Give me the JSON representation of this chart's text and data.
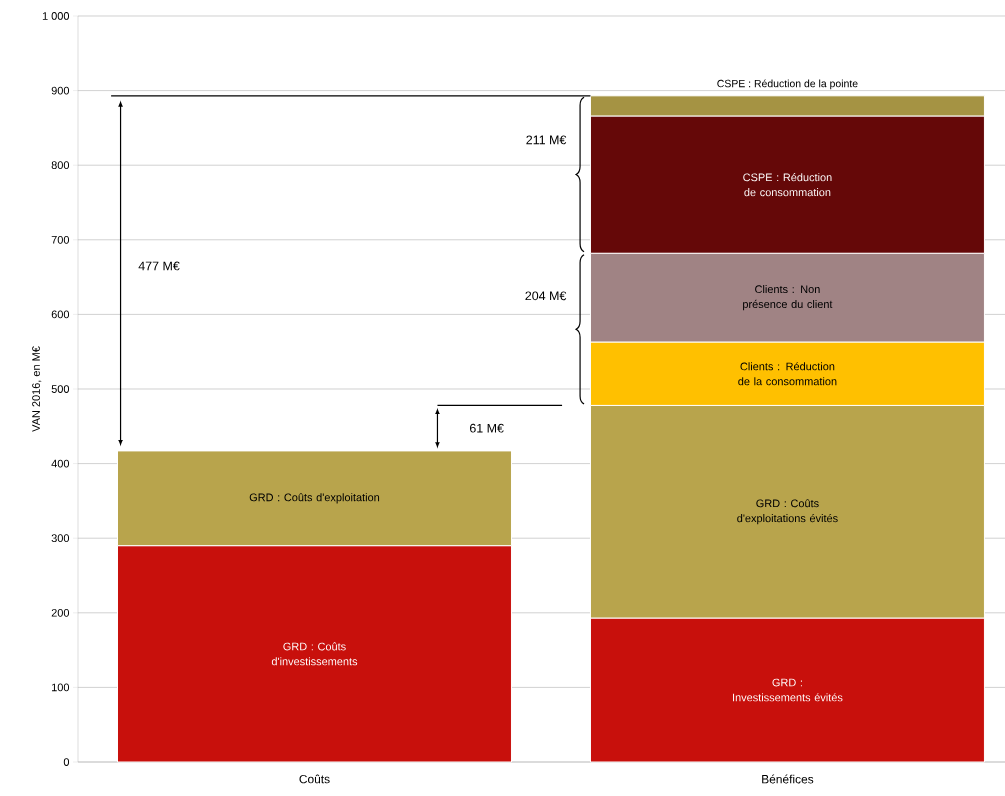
{
  "chart_data": {
    "type": "bar",
    "stacked": true,
    "categories": [
      "Coûts",
      "Bénéfices"
    ],
    "ylabel": "VAN 2016, en M€",
    "ylim": [
      0,
      1000
    ],
    "yticks": [
      0,
      100,
      200,
      300,
      400,
      500,
      600,
      700,
      800,
      900,
      {
        "value": 1000,
        "label": "1 000"
      }
    ],
    "grid": "y",
    "series": [
      {
        "name": "GRD : Coûts d'investissements",
        "color": "#c8100c",
        "values": [
          290,
          null
        ]
      },
      {
        "name": "GRD : Coûts d'exploitation",
        "color": "#b8a44c",
        "values": [
          127,
          null
        ]
      },
      {
        "name": "GRD : Investissements évités",
        "color": "#c8100c",
        "values": [
          null,
          193
        ]
      },
      {
        "name": "GRD : Coûts d'exploitations évités",
        "color": "#b8a44c",
        "values": [
          null,
          285
        ]
      },
      {
        "name": "Clients : Réduction de la consommation",
        "color": "#ffc000",
        "values": [
          null,
          85
        ]
      },
      {
        "name": "Clients : Non présence du client",
        "color": "#a08384",
        "values": [
          null,
          119
        ]
      },
      {
        "name": "CSPE : Réduction de consommation",
        "color": "#650808",
        "values": [
          null,
          184
        ]
      },
      {
        "name": "CSPE : Réduction de la pointe",
        "color": "#a59343",
        "values": [
          null,
          27
        ]
      }
    ],
    "ref_lines": [
      {
        "axis": "y",
        "value": 893,
        "color": "#000000"
      },
      {
        "axis": "y",
        "value": 478,
        "color": "#000000"
      }
    ],
    "annotations": [
      "477 M€",
      "61 M€",
      "204 M€",
      "211 M€"
    ]
  }
}
